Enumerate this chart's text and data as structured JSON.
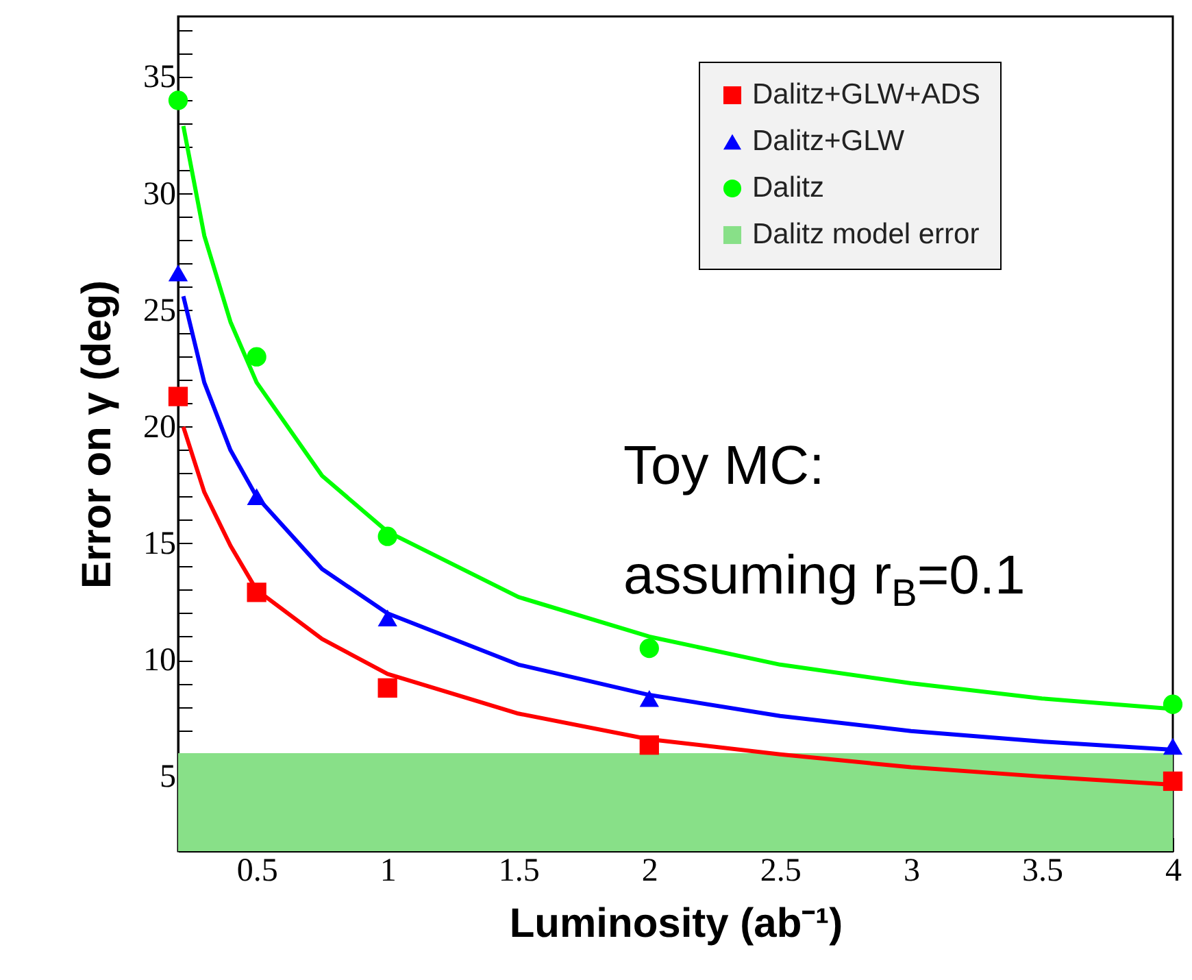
{
  "chart_data": {
    "type": "scatter",
    "xlabel": "Luminosity (ab⁻¹)",
    "ylabel": "Error on γ (deg)",
    "xlim": [
      0.2,
      4
    ],
    "ylim": [
      1.8,
      37.6
    ],
    "xticks": [
      0.5,
      1,
      1.5,
      2,
      2.5,
      3,
      3.5,
      4
    ],
    "yticks": [
      {
        "value": 2,
        "label": null
      },
      {
        "value": 3,
        "label": null
      },
      {
        "value": 4,
        "label": null
      },
      5,
      {
        "value": 6,
        "label": null
      },
      {
        "value": 7,
        "label": null
      },
      {
        "value": 8,
        "label": null
      },
      {
        "value": 9,
        "label": null
      },
      10,
      {
        "value": 11,
        "label": null
      },
      {
        "value": 12,
        "label": null
      },
      {
        "value": 13,
        "label": null
      },
      {
        "value": 14,
        "label": null
      },
      15,
      {
        "value": 16,
        "label": null
      },
      {
        "value": 17,
        "label": null
      },
      {
        "value": 18,
        "label": null
      },
      {
        "value": 19,
        "label": null
      },
      20,
      {
        "value": 21,
        "label": null
      },
      {
        "value": 22,
        "label": null
      },
      {
        "value": 23,
        "label": null
      },
      {
        "value": 24,
        "label": null
      },
      25,
      {
        "value": 26,
        "label": null
      },
      {
        "value": 27,
        "label": null
      },
      {
        "value": 28,
        "label": null
      },
      {
        "value": 29,
        "label": null
      },
      30,
      {
        "value": 31,
        "label": null
      },
      {
        "value": 32,
        "label": null
      },
      {
        "value": 33,
        "label": null
      },
      {
        "value": 34,
        "label": null
      },
      35,
      {
        "value": 36,
        "label": null
      },
      {
        "value": 37,
        "label": null
      }
    ],
    "legend": "top right",
    "annotations": [
      "Toy MC:",
      "assuming r$_{B}$=0.1"
    ],
    "bands": [
      {
        "axis": "y",
        "from": 1.8,
        "to": 6,
        "label": "Dalitz model error",
        "color": "#88e088"
      }
    ],
    "series": [
      {
        "name": "Dalitz+GLW+ADS",
        "marker": "square",
        "color": "#ff0000",
        "x": [
          0.2,
          0.5,
          1,
          2,
          4
        ],
        "values": [
          21.3,
          12.9,
          8.8,
          6.35,
          4.8
        ]
      },
      {
        "name": "Dalitz+GLW",
        "marker": "triangle",
        "color": "#0000ff",
        "x": [
          0.2,
          0.5,
          1,
          2,
          4
        ],
        "values": [
          26.6,
          17.0,
          11.8,
          8.35,
          6.3
        ]
      },
      {
        "name": "Dalitz",
        "marker": "circle",
        "color": "#00ff00",
        "x": [
          0.2,
          0.5,
          1,
          2,
          4
        ],
        "values": [
          34.0,
          23.0,
          15.3,
          10.5,
          8.1
        ]
      },
      {
        "type": "line",
        "color": "#ff0000",
        "x": [
          0.22,
          0.3,
          0.4,
          0.5,
          0.75,
          1,
          1.5,
          2,
          2.5,
          3,
          3.5,
          4
        ],
        "values": [
          20,
          17.2,
          14.9,
          13.0,
          10.9,
          9.4,
          7.7,
          6.6,
          5.95,
          5.4,
          5.0,
          4.65
        ]
      },
      {
        "type": "line",
        "color": "#0000ff",
        "x": [
          0.22,
          0.3,
          0.4,
          0.5,
          0.75,
          1,
          1.5,
          2,
          2.5,
          3,
          3.5,
          4
        ],
        "values": [
          25.6,
          21.9,
          19.0,
          17.0,
          13.9,
          12.0,
          9.8,
          8.5,
          7.6,
          6.95,
          6.5,
          6.15
        ]
      },
      {
        "type": "line",
        "color": "#00ff00",
        "x": [
          0.22,
          0.3,
          0.4,
          0.5,
          0.75,
          1,
          1.5,
          2,
          2.5,
          3,
          3.5,
          4
        ],
        "values": [
          32.9,
          28.2,
          24.5,
          21.9,
          17.9,
          15.5,
          12.7,
          11.0,
          9.8,
          9.0,
          8.35,
          7.9
        ]
      }
    ]
  }
}
